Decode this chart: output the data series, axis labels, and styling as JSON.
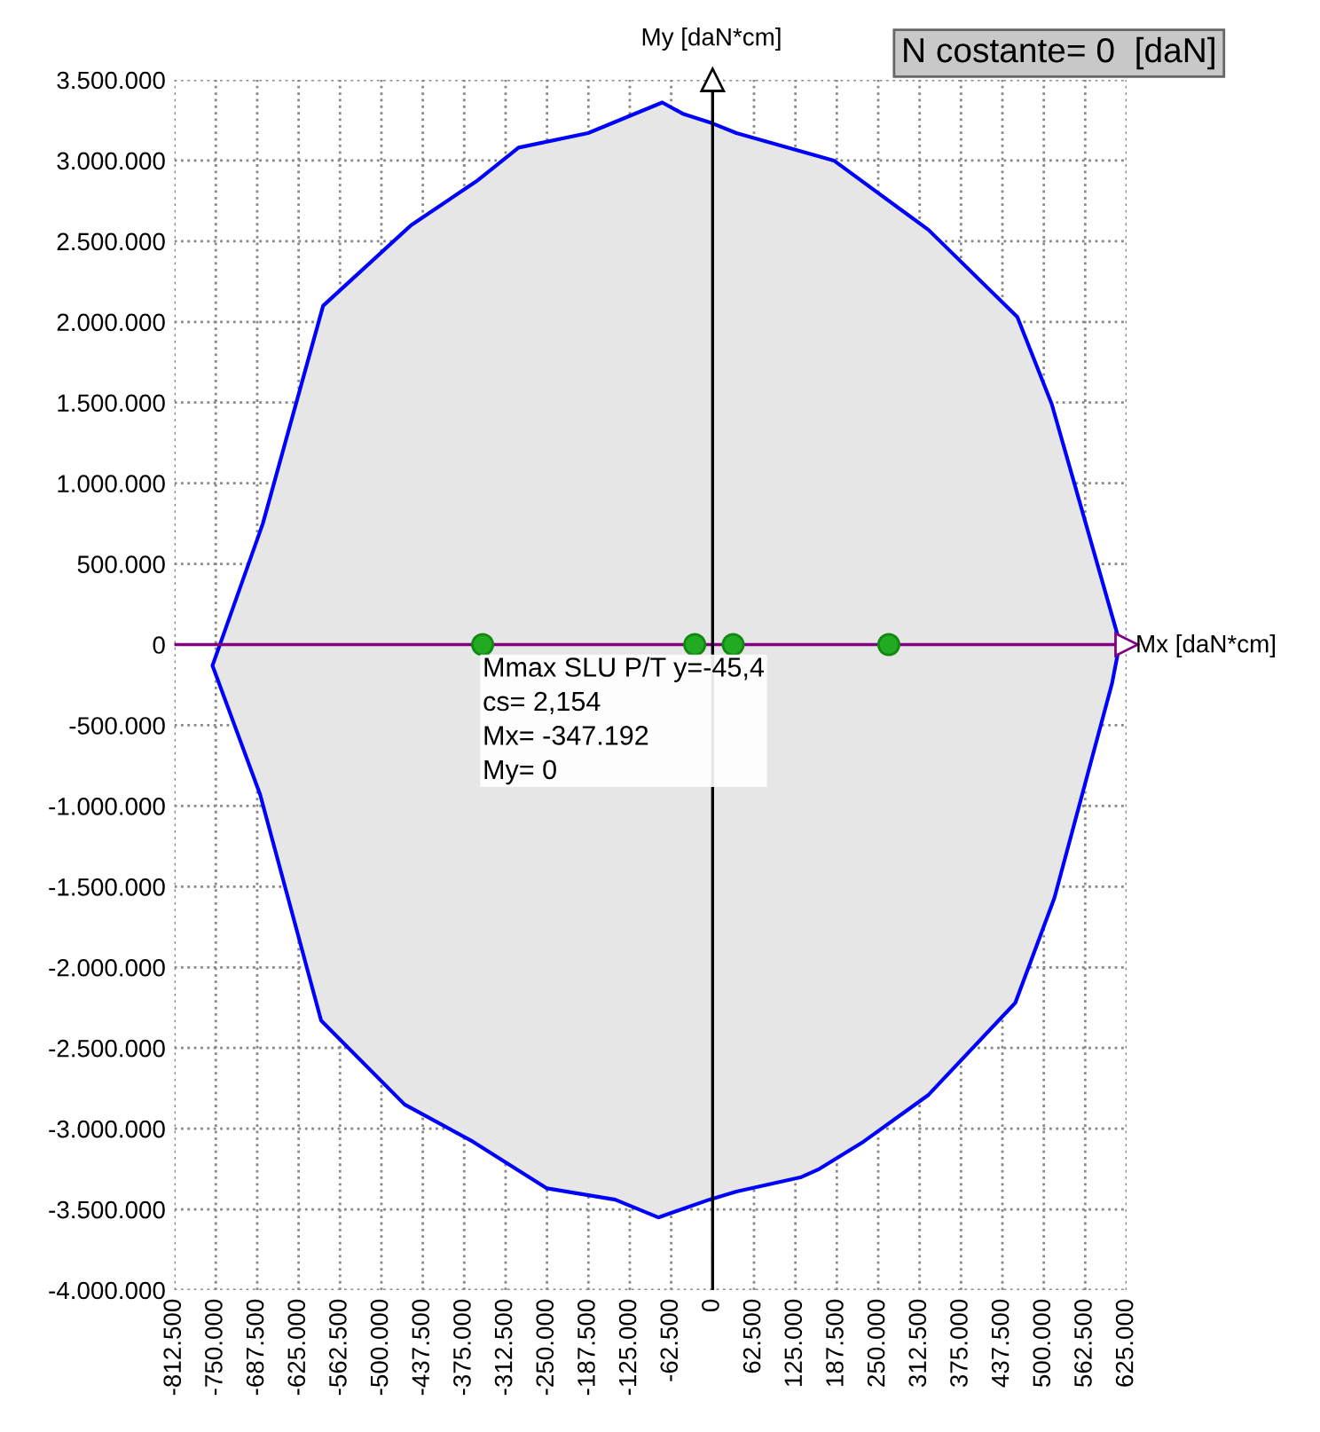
{
  "chart_data": {
    "type": "area",
    "xlabel": "Mx [daN*cm]",
    "ylabel": "My [daN*cm]",
    "xlim": [
      -812500,
      625000
    ],
    "ylim": [
      -4000000,
      3500000
    ],
    "xticks": [
      {
        "value": -812500,
        "label": "-812.500"
      },
      {
        "value": -750000,
        "label": "-750.000"
      },
      {
        "value": -687500,
        "label": "-687.500"
      },
      {
        "value": -625000,
        "label": "-625.000"
      },
      {
        "value": -562500,
        "label": "-562.500"
      },
      {
        "value": -500000,
        "label": "-500.000"
      },
      {
        "value": -437500,
        "label": "-437.500"
      },
      {
        "value": -375000,
        "label": "-375.000"
      },
      {
        "value": -312500,
        "label": "-312.500"
      },
      {
        "value": -250000,
        "label": "-250.000"
      },
      {
        "value": -187500,
        "label": "-187.500"
      },
      {
        "value": -125000,
        "label": "-125.000"
      },
      {
        "value": -62500,
        "label": "-62.500"
      },
      0,
      {
        "value": 62500,
        "label": "62.500"
      },
      {
        "value": 125000,
        "label": "125.000"
      },
      {
        "value": 187500,
        "label": "187.500"
      },
      {
        "value": 250000,
        "label": "250.000"
      },
      {
        "value": 312500,
        "label": "312.500"
      },
      {
        "value": 375000,
        "label": "375.000"
      },
      {
        "value": 437500,
        "label": "437.500"
      },
      {
        "value": 500000,
        "label": "500.000"
      },
      {
        "value": 562500,
        "label": "562.500"
      },
      {
        "value": 625000,
        "label": "625.000"
      }
    ],
    "yticks": [
      {
        "value": -4000000,
        "label": "-4.000.000"
      },
      {
        "value": -3500000,
        "label": "-3.500.000"
      },
      {
        "value": -3000000,
        "label": "-3.000.000"
      },
      {
        "value": -2500000,
        "label": "-2.500.000"
      },
      {
        "value": -2000000,
        "label": "-2.000.000"
      },
      {
        "value": -1500000,
        "label": "-1.500.000"
      },
      {
        "value": -1000000,
        "label": "-1.000.000"
      },
      {
        "value": -500000,
        "label": "-500.000"
      },
      0,
      {
        "value": 500000,
        "label": "500.000"
      },
      {
        "value": 1000000,
        "label": "1.000.000"
      },
      {
        "value": 1500000,
        "label": "1.500.000"
      },
      {
        "value": 2000000,
        "label": "2.000.000"
      },
      {
        "value": 2500000,
        "label": "2.500.000"
      },
      {
        "value": 3000000,
        "label": "3.000.000"
      },
      {
        "value": 3500000,
        "label": "3.500.000"
      }
    ],
    "grid": true,
    "series": [
      {
        "color": "#0000ff",
        "x": [
          -755000,
          -679000,
          -588000,
          -455000,
          -357000,
          -305000,
          -293000,
          -188000,
          -76000,
          -45000,
          0,
          36000,
          183000,
          326000,
          460000,
          512000,
          612000,
          612000,
          603000,
          516000,
          457000,
          326000,
          228000,
          161000,
          134000,
          36000,
          -5000,
          -82000,
          -147000,
          -250000,
          -362000,
          -465000,
          -591000,
          -683000
        ],
        "values": [
          -130000,
          750000,
          2100000,
          2600000,
          2870000,
          3040000,
          3080000,
          3170000,
          3360000,
          3290000,
          3230000,
          3170000,
          3000000,
          2570000,
          2030000,
          1490000,
          50000,
          -50000,
          -240000,
          -1570000,
          -2220000,
          -2790000,
          -3080000,
          -3250000,
          -3300000,
          -3390000,
          -3440000,
          -3550000,
          -3440000,
          -3370000,
          -3080000,
          -2850000,
          -2330000,
          -930000
        ]
      },
      {
        "type": "scatter",
        "color": "#22aa22",
        "marker": "circle",
        "x": [
          -347192,
          -27000,
          31000,
          266000
        ],
        "values": [
          0,
          0,
          0,
          0
        ]
      }
    ],
    "ref_lines": [
      {
        "axis": "y",
        "value": 0,
        "color": "#800080"
      },
      {
        "axis": "x",
        "value": 0,
        "color": "#000000"
      }
    ],
    "annotations": [
      {
        "text": "Mmax SLU P/T y=-45,4\ncs= 2,154\nMx= -347.192\nMy= 0",
        "x": -347192,
        "y": 0
      },
      "N costante= 0  [daN]"
    ]
  }
}
